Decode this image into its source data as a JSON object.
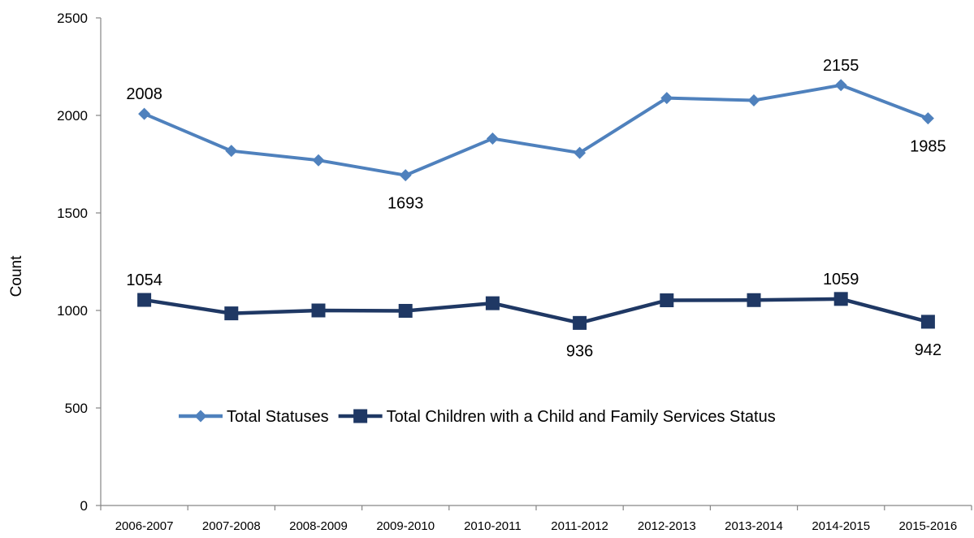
{
  "chart_data": {
    "type": "line",
    "categories": [
      "2006-2007",
      "2007-2008",
      "2008-2009",
      "2009-2010",
      "2010-2011",
      "2011-2012",
      "2012-2013",
      "2013-2014",
      "2014-2015",
      "2015-2016"
    ],
    "ylabel": "Count",
    "xlabel": "",
    "ylim": [
      0,
      2500
    ],
    "yticks": [
      0,
      500,
      1000,
      1500,
      2000,
      2500
    ],
    "grid": false,
    "legend_position": "center",
    "series": [
      {
        "name": "Total Statuses",
        "color": "#4F81BD",
        "marker": "diamond",
        "values": [
          2008,
          1818,
          1770,
          1693,
          1881,
          1808,
          2089,
          2077,
          2155,
          1985
        ],
        "labeled_indices": [
          0,
          3,
          8,
          9
        ]
      },
      {
        "name": "Total Children with a Child and Family Services Status",
        "color": "#1F3864",
        "marker": "square",
        "values": [
          1054,
          985,
          1000,
          998,
          1037,
          936,
          1052,
          1053,
          1059,
          942
        ],
        "labeled_indices": [
          0,
          5,
          8,
          9
        ]
      }
    ]
  }
}
